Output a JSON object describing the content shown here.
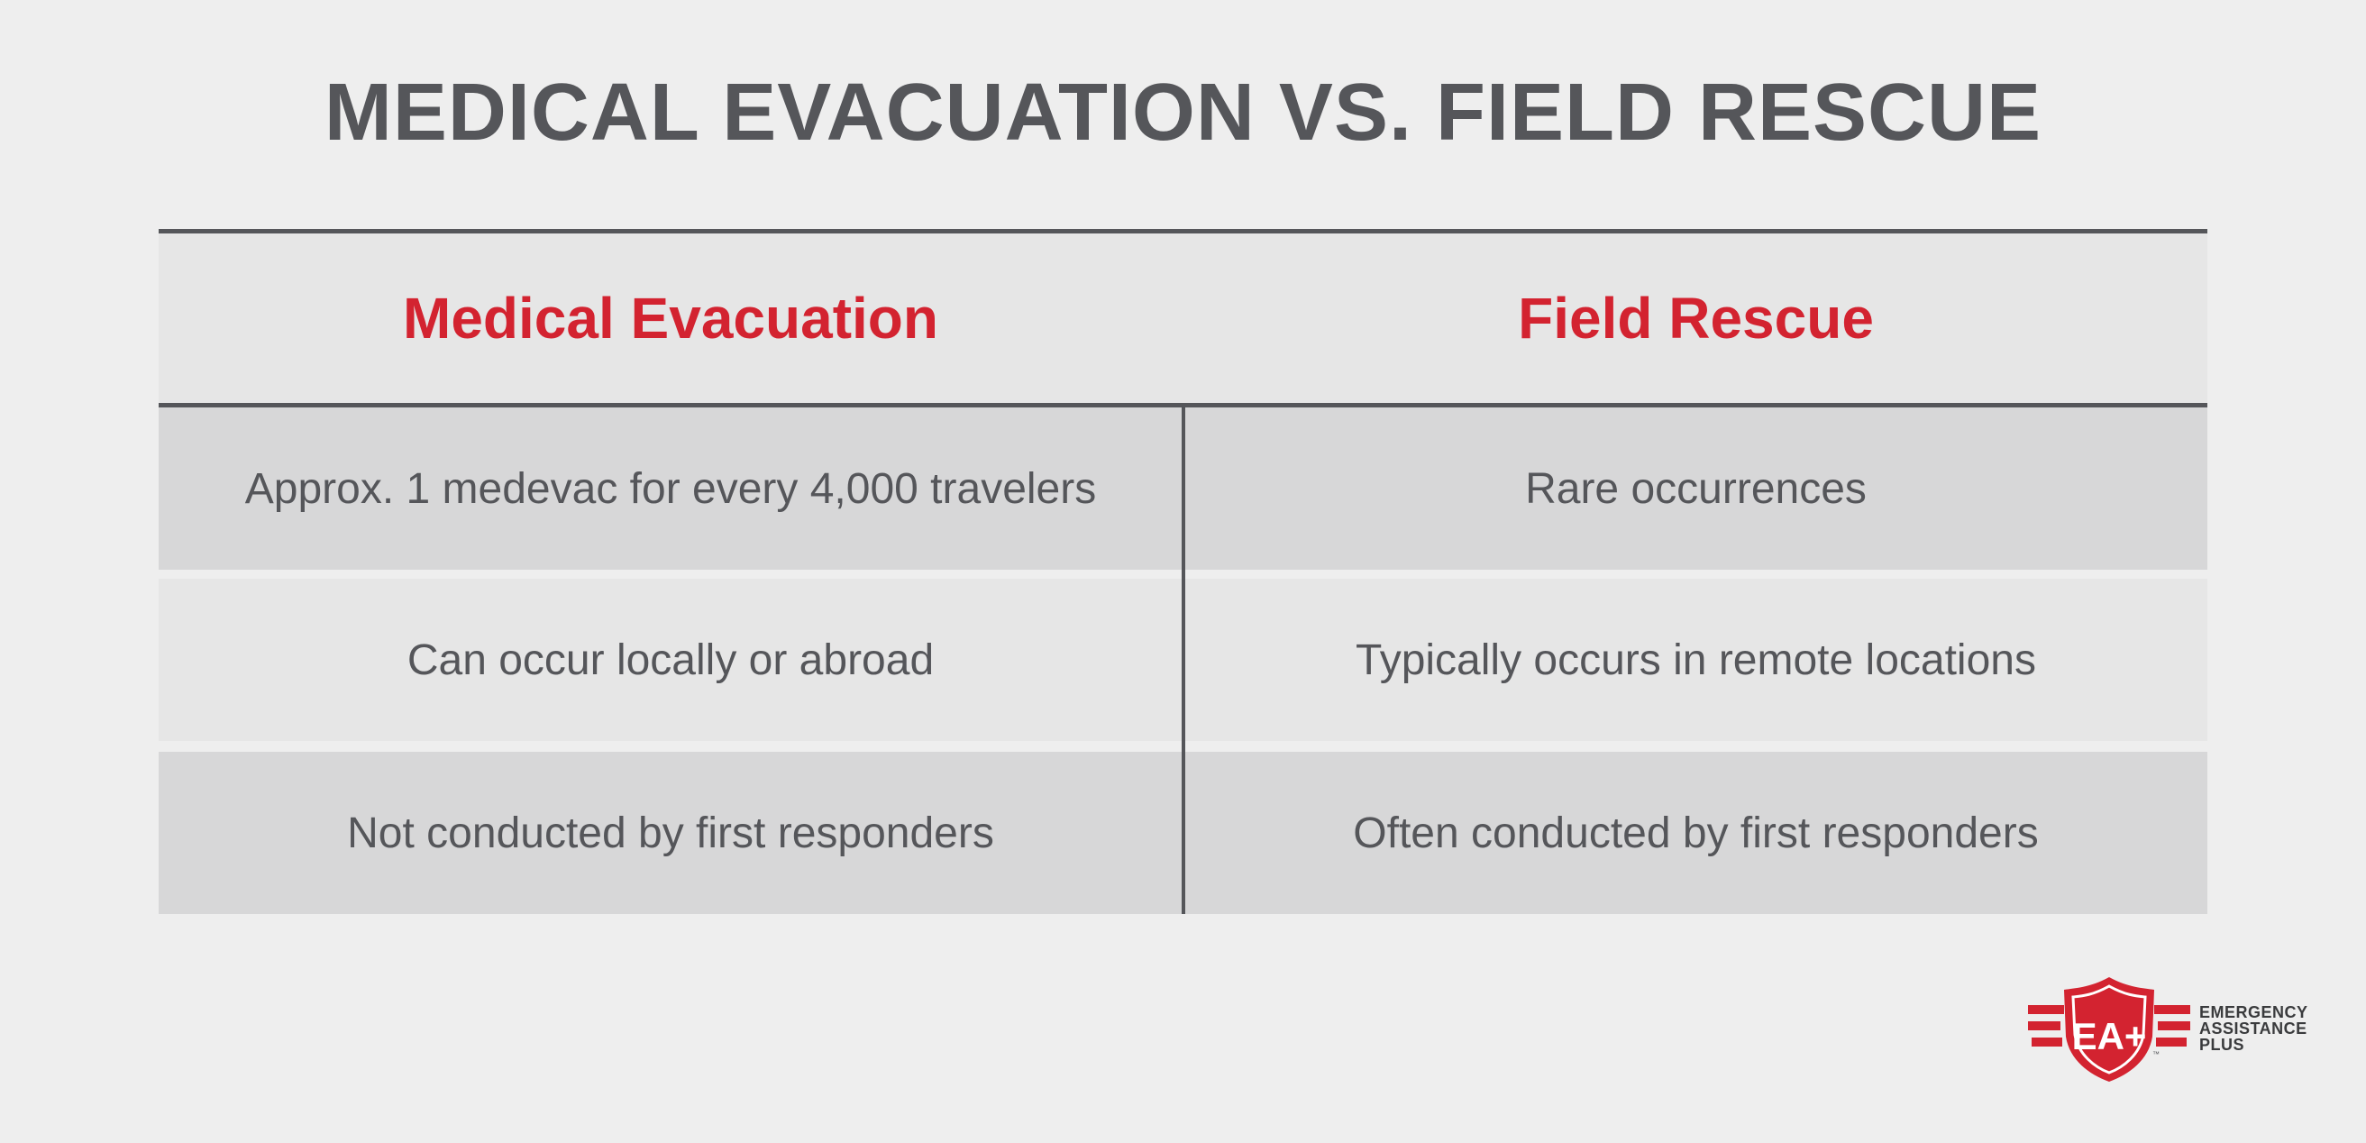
{
  "title": "MEDICAL EVACUATION VS. FIELD RESCUE",
  "columns": {
    "left": "Medical Evacuation",
    "right": "Field Rescue"
  },
  "rows": [
    {
      "left": "Approx. 1 medevac for every 4,000 travelers",
      "right": "Rare occurrences"
    },
    {
      "left": "Can occur locally or abroad",
      "right": "Typically occurs in remote locations"
    },
    {
      "left": "Not conducted by first responders",
      "right": "Often conducted by first responders"
    }
  ],
  "logo": {
    "mark": "EA+",
    "trademark": "™",
    "lines": [
      "EMERGENCY",
      "ASSISTANCE",
      "PLUS"
    ]
  },
  "colors": {
    "accent_red": "#d32330",
    "text_gray": "#55565a",
    "background": "#eeeeee"
  }
}
